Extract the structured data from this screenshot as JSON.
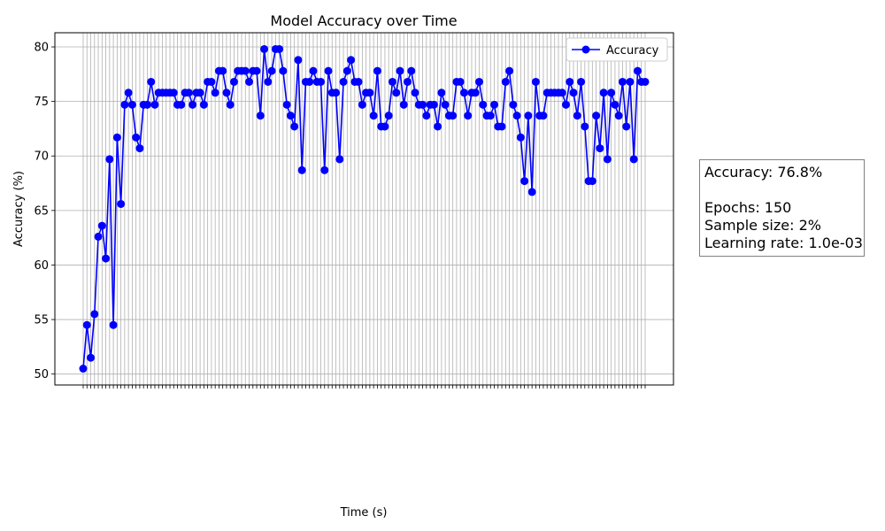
{
  "chart_data": {
    "type": "line",
    "title": "Model Accuracy over Time",
    "xlabel": "Time (s)",
    "ylabel": "Accuracy (%)",
    "ylim": [
      49,
      81.3
    ],
    "yticks": [
      50,
      55,
      60,
      65,
      70,
      75,
      80
    ],
    "grid": true,
    "legend_position": "top-right",
    "series": [
      {
        "name": "Accuracy",
        "color": "#0000ff",
        "marker": "circle",
        "values": [
          50.5,
          54.5,
          51.5,
          55.5,
          62.6,
          63.6,
          60.6,
          69.7,
          54.5,
          71.7,
          65.6,
          74.7,
          75.8,
          74.7,
          71.7,
          70.7,
          74.7,
          74.7,
          76.8,
          74.7,
          75.8,
          75.8,
          75.8,
          75.8,
          75.8,
          74.7,
          74.7,
          75.8,
          75.8,
          74.7,
          75.8,
          75.8,
          74.7,
          76.8,
          76.8,
          75.8,
          77.8,
          77.8,
          75.8,
          74.7,
          76.8,
          77.8,
          77.8,
          77.8,
          76.8,
          77.8,
          77.8,
          73.7,
          79.8,
          76.8,
          77.8,
          79.8,
          79.8,
          77.8,
          74.7,
          73.7,
          72.7,
          78.8,
          68.7,
          76.8,
          76.8,
          77.8,
          76.8,
          76.8,
          68.7,
          77.8,
          75.8,
          75.8,
          69.7,
          76.8,
          77.8,
          78.8,
          76.8,
          76.8,
          74.7,
          75.8,
          75.8,
          73.7,
          77.8,
          72.7,
          72.7,
          73.7,
          76.8,
          75.8,
          77.8,
          74.7,
          76.8,
          77.8,
          75.8,
          74.7,
          74.7,
          73.7,
          74.7,
          74.7,
          72.7,
          75.8,
          74.7,
          73.7,
          73.7,
          76.8,
          76.8,
          75.8,
          73.7,
          75.8,
          75.8,
          76.8,
          74.7,
          73.7,
          73.7,
          74.7,
          72.7,
          72.7,
          76.8,
          77.8,
          74.7,
          73.7,
          71.7,
          67.7,
          73.7,
          66.7,
          76.8,
          73.7,
          73.7,
          75.8,
          75.8,
          75.8,
          75.8,
          75.8,
          74.7,
          76.8,
          75.8,
          73.7,
          76.8,
          72.7,
          67.7,
          67.7,
          73.7,
          70.7,
          75.8,
          69.7,
          75.8,
          74.7,
          73.7,
          76.8,
          72.7,
          76.8,
          69.7,
          77.8,
          76.8,
          76.8
        ]
      }
    ]
  },
  "info": {
    "accuracy": "Accuracy: 76.8%",
    "epochs": "Epochs: 150",
    "sample_size": "Sample size: 2%",
    "learning_rate": "Learning rate: 1.0e-03"
  }
}
